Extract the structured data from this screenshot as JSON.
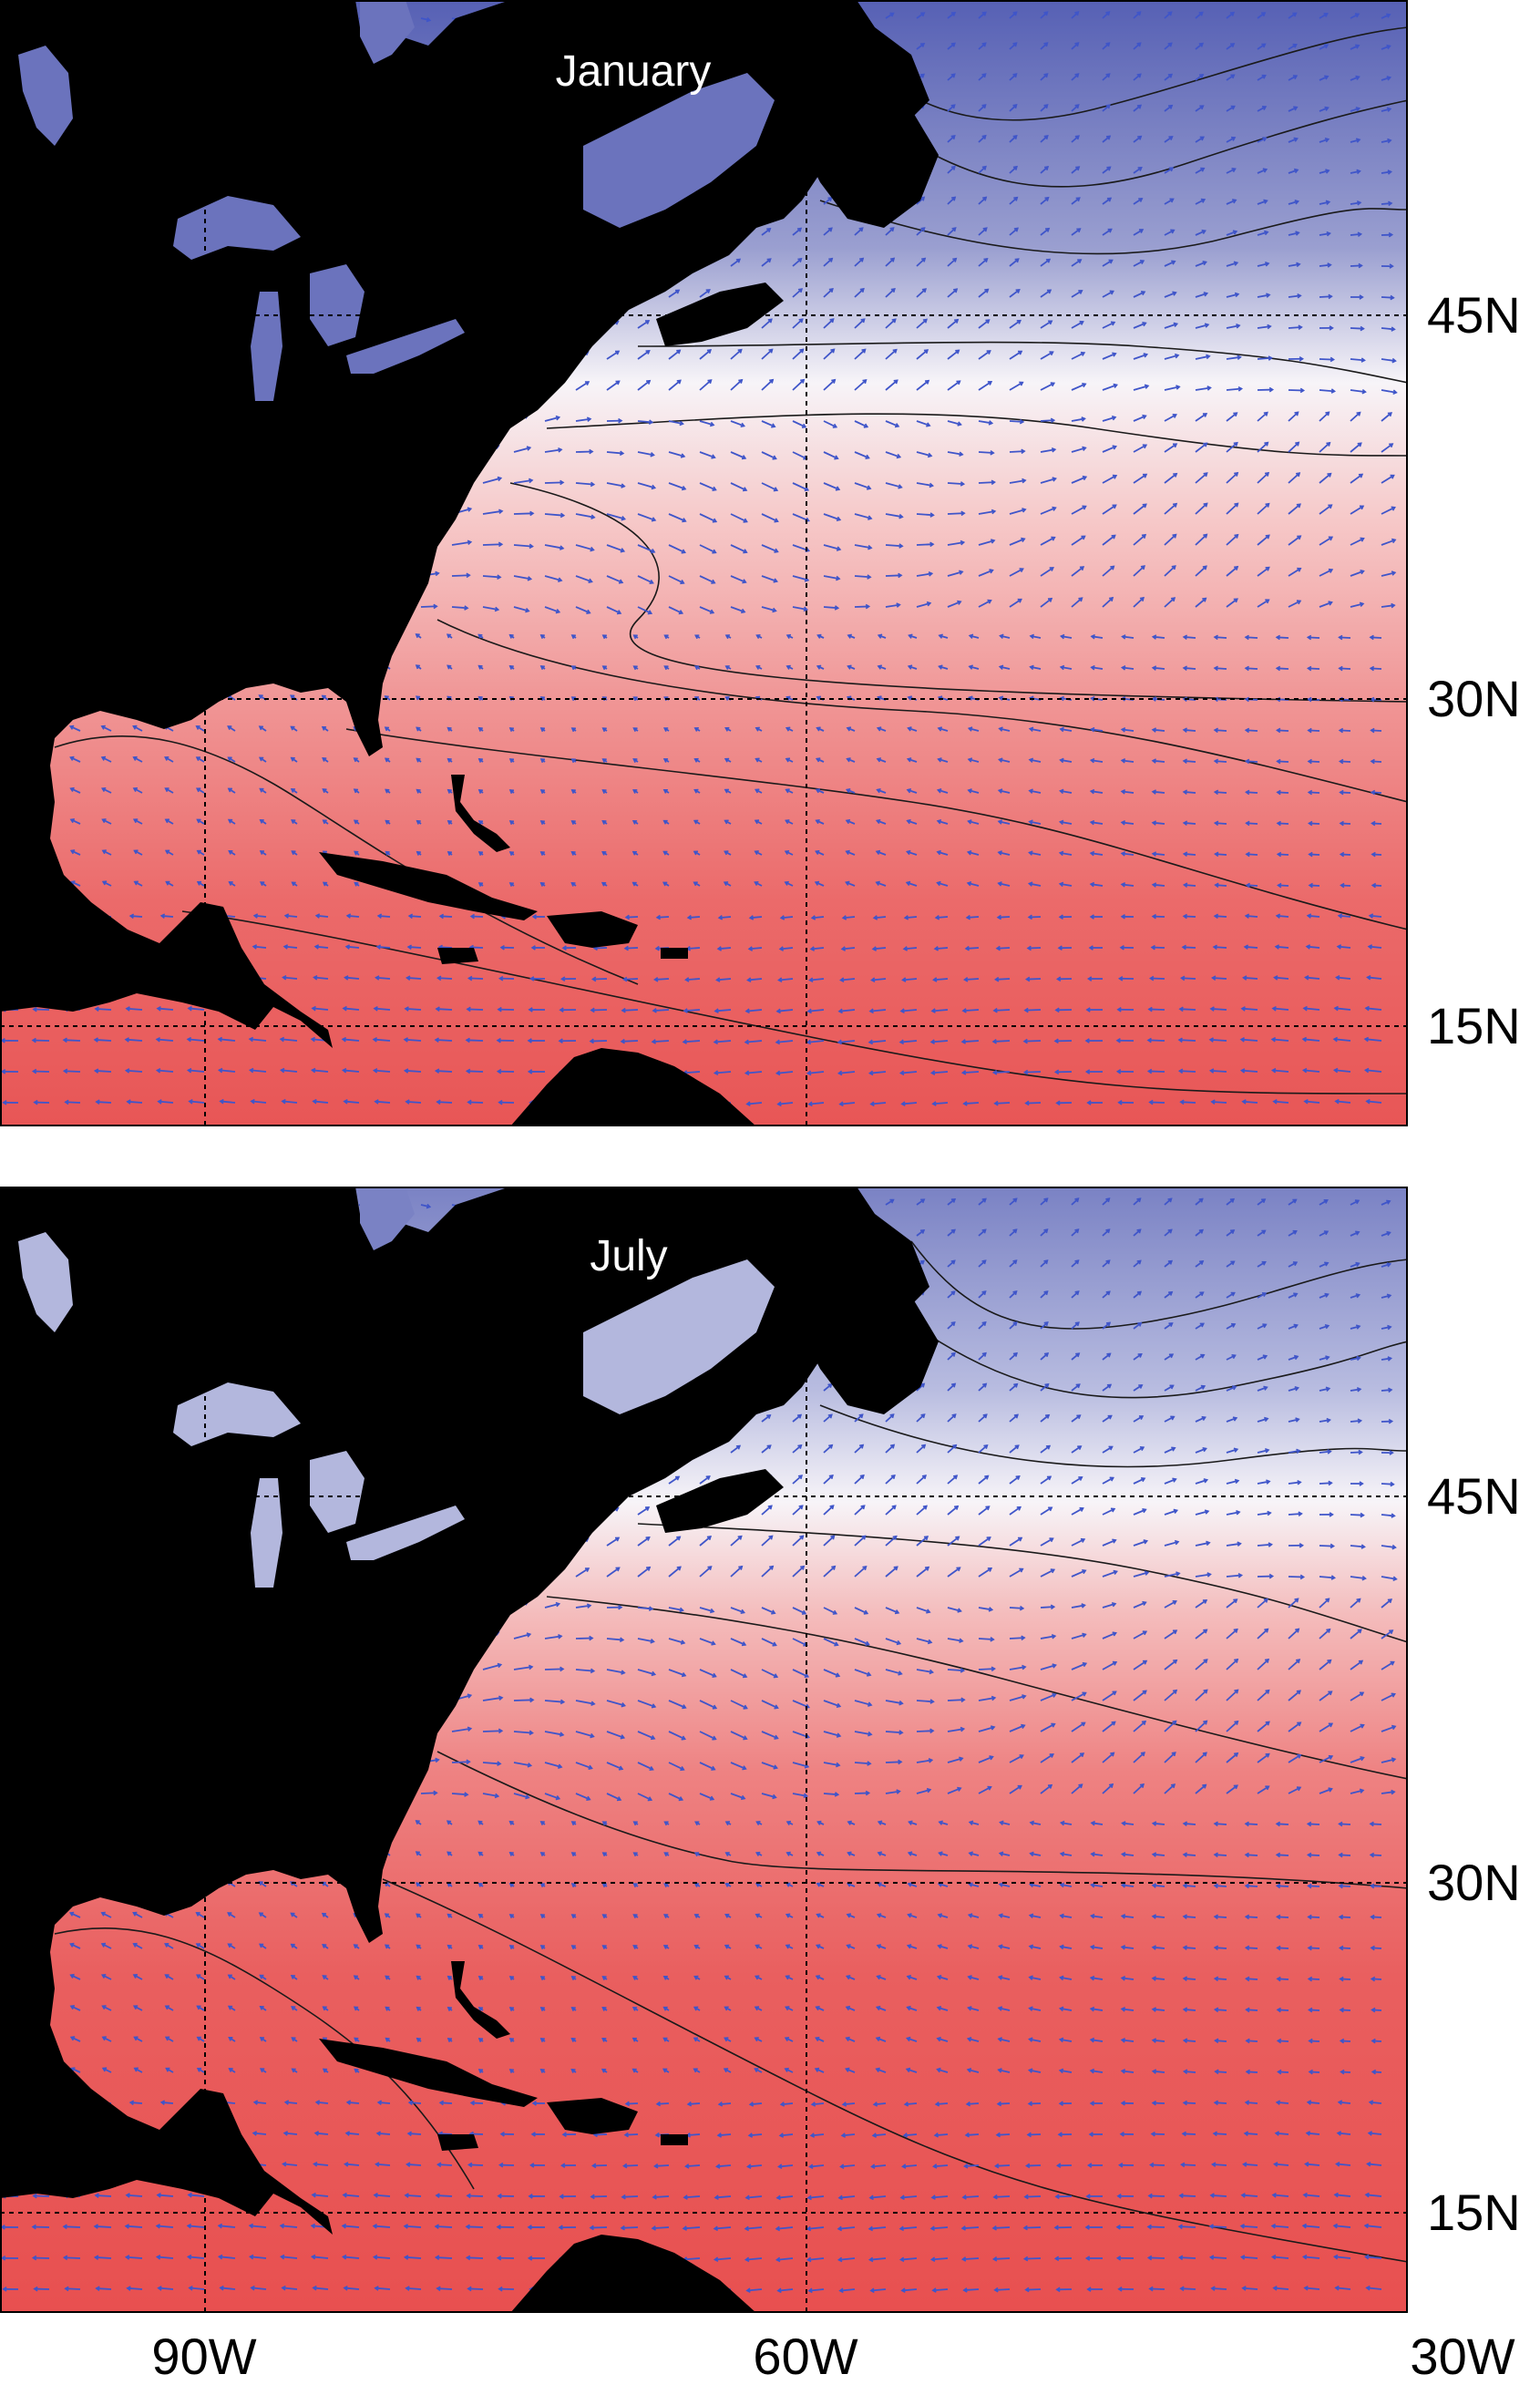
{
  "panels": [
    {
      "id": "january",
      "title": "January"
    },
    {
      "id": "july",
      "title": "July"
    }
  ],
  "lat_labels": [
    "45N",
    "30N",
    "15N"
  ],
  "lon_labels": [
    "90W",
    "60W",
    "30W"
  ],
  "colors": {
    "land": "#000000",
    "cold": "#5c66b8",
    "neutral": "#fbf4f4",
    "warm": "#ec5656",
    "vector": "#3f55c9",
    "contour": "#1a1a1a",
    "gridline": "#000000"
  },
  "map_extent": {
    "lon_min": -100,
    "lon_max": -30,
    "lat_min": 8,
    "lat_max": 63
  }
}
